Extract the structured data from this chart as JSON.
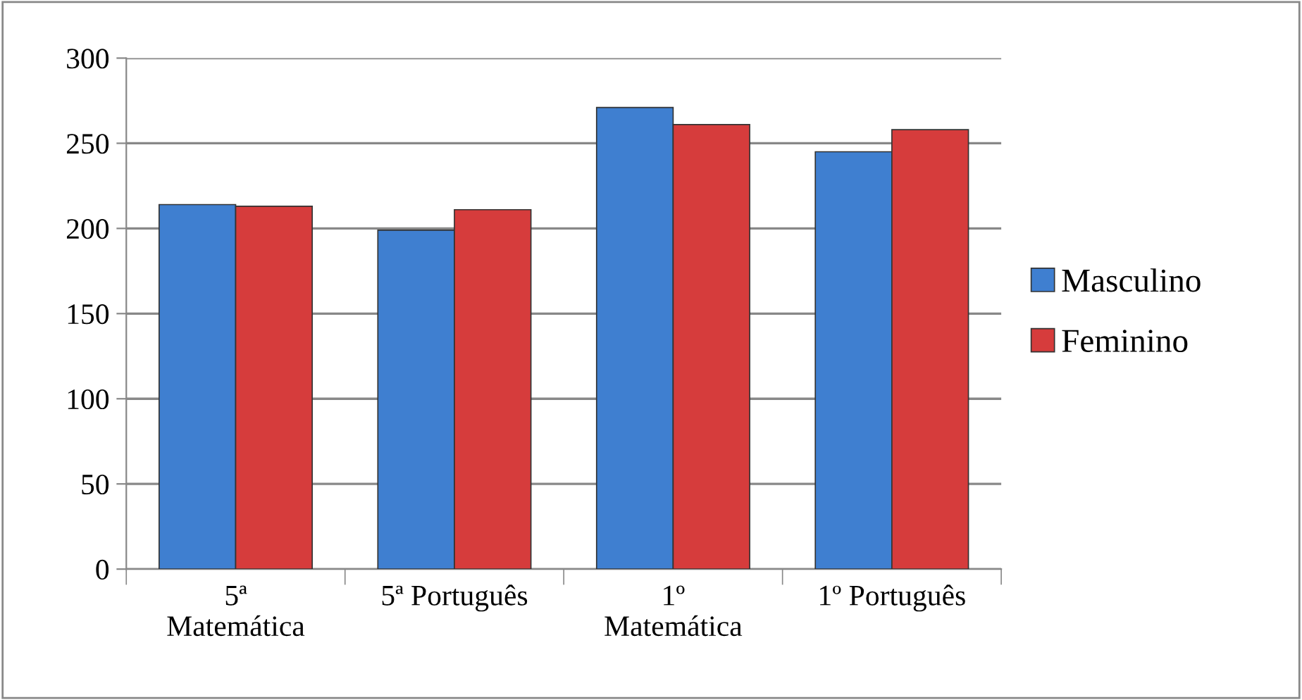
{
  "chart_data": {
    "type": "bar",
    "categories": [
      "5ª\nMatemática",
      "5ª Português",
      "1º\nMatemática",
      "1º Português"
    ],
    "series": [
      {
        "name": "Masculino",
        "color": "#3f7fd0",
        "values": [
          214,
          199,
          271,
          245
        ]
      },
      {
        "name": "Feminino",
        "color": "#d63c3c",
        "values": [
          213,
          211,
          261,
          258
        ]
      }
    ],
    "ylim": [
      0,
      300
    ],
    "yticks": [
      0,
      50,
      100,
      150,
      200,
      250,
      300
    ],
    "grid": "y",
    "legend": "right"
  }
}
